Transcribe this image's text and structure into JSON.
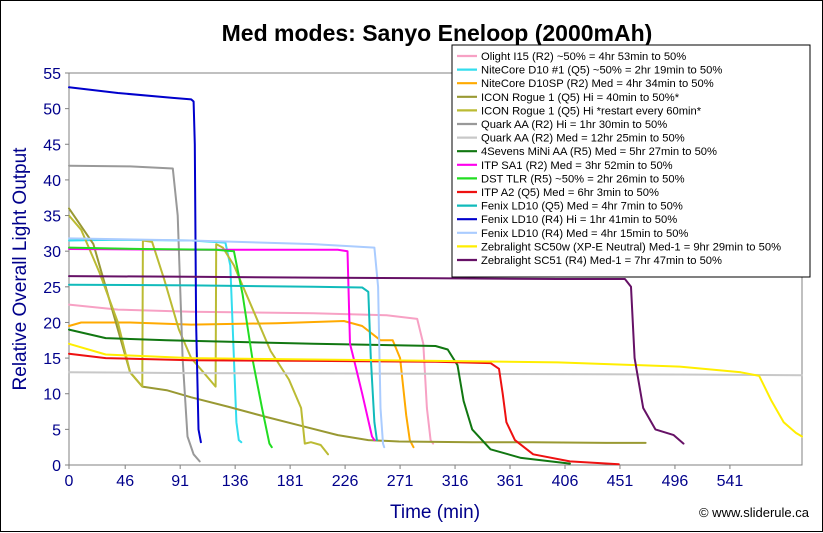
{
  "chart_data": {
    "type": "line",
    "title": "Med modes: Sanyo Eneloop (2000mAh)",
    "xlabel": "Time (min)",
    "ylabel": "Relative Overall Light Output",
    "xlim": [
      0,
      600
    ],
    "ylim": [
      0,
      55
    ],
    "xticks": [
      0,
      46,
      91,
      136,
      181,
      226,
      271,
      316,
      361,
      406,
      451,
      496,
      541
    ],
    "yticks": [
      0,
      5,
      10,
      15,
      20,
      25,
      30,
      35,
      40,
      45,
      50,
      55
    ],
    "grid": false,
    "legend_position": "top-right",
    "credit": "© www.sliderule.ca",
    "series": [
      {
        "name": "Olight I15 (R2) ~50% = 4hr 53min to 50%",
        "color": "#f7a1c4",
        "points": [
          [
            0,
            22.5
          ],
          [
            40,
            21.8
          ],
          [
            100,
            21.5
          ],
          [
            200,
            21.3
          ],
          [
            260,
            21.0
          ],
          [
            285,
            20.5
          ],
          [
            290,
            17
          ],
          [
            293,
            8
          ],
          [
            296,
            3.5
          ],
          [
            298,
            3
          ]
        ]
      },
      {
        "name": "NiteCore D10 #1 (Q5) ~50% = 2hr 19min to 50%",
        "color": "#33ddee",
        "points": [
          [
            0,
            31.5
          ],
          [
            40,
            31.6
          ],
          [
            100,
            31.5
          ],
          [
            128,
            31.2
          ],
          [
            132,
            28
          ],
          [
            135,
            15
          ],
          [
            137,
            6
          ],
          [
            139,
            3.5
          ],
          [
            141,
            3.2
          ]
        ]
      },
      {
        "name": "NiteCore D10SP (R2) Med = 4hr 34min to 50%",
        "color": "#ffaa00",
        "points": [
          [
            0,
            19.5
          ],
          [
            10,
            20
          ],
          [
            50,
            20
          ],
          [
            100,
            19.7
          ],
          [
            170,
            19.9
          ],
          [
            225,
            20.2
          ],
          [
            240,
            19.5
          ],
          [
            255,
            17.5
          ],
          [
            265,
            17.5
          ],
          [
            271,
            15
          ],
          [
            276,
            7
          ],
          [
            279,
            3.5
          ],
          [
            282,
            2.5
          ]
        ]
      },
      {
        "name": "ICON Rogue 1 (Q5) Hi = 40min to 50%*",
        "color": "#999933",
        "points": [
          [
            0,
            36
          ],
          [
            8,
            34
          ],
          [
            20,
            31
          ],
          [
            35,
            22
          ],
          [
            50,
            13
          ],
          [
            60,
            11
          ],
          [
            80,
            10.5
          ],
          [
            100,
            9.5
          ],
          [
            130,
            8.2
          ],
          [
            160,
            6.8
          ],
          [
            190,
            5.5
          ],
          [
            220,
            4.2
          ],
          [
            245,
            3.5
          ],
          [
            270,
            3.3
          ],
          [
            330,
            3.2
          ],
          [
            380,
            3.2
          ],
          [
            440,
            3.1
          ],
          [
            472,
            3.1
          ]
        ]
      },
      {
        "name": "ICON Rogue 1 (Q5) Hi *restart every 60min*",
        "color": "#bbbb33",
        "points": [
          [
            0,
            35
          ],
          [
            10,
            33
          ],
          [
            25,
            27
          ],
          [
            40,
            20
          ],
          [
            50,
            13
          ],
          [
            60,
            11
          ],
          [
            60.5,
            31.5
          ],
          [
            68,
            31.3
          ],
          [
            78,
            26
          ],
          [
            90,
            19
          ],
          [
            100,
            15
          ],
          [
            110,
            13
          ],
          [
            120,
            11
          ],
          [
            120.5,
            31
          ],
          [
            126,
            30.5
          ],
          [
            135,
            28
          ],
          [
            150,
            22
          ],
          [
            165,
            16
          ],
          [
            180,
            12
          ],
          [
            190,
            8
          ],
          [
            193,
            3
          ],
          [
            198,
            3.2
          ],
          [
            206,
            2.8
          ],
          [
            212,
            1.5
          ]
        ]
      },
      {
        "name": "Quark AA (R2) Hi = 1hr 30min to 50%",
        "color": "#999999",
        "points": [
          [
            0,
            42
          ],
          [
            50,
            41.9
          ],
          [
            85,
            41.6
          ],
          [
            89,
            35
          ],
          [
            93,
            15
          ],
          [
            97,
            4
          ],
          [
            102,
            1.5
          ],
          [
            107,
            0.5
          ]
        ]
      },
      {
        "name": "Quark AA (R2) Med = 12hr 25min to 50%",
        "color": "#c8c8c8",
        "points": [
          [
            0,
            13
          ],
          [
            100,
            12.9
          ],
          [
            300,
            12.8
          ],
          [
            500,
            12.7
          ],
          [
            600,
            12.6
          ]
        ]
      },
      {
        "name": "4Sevens MiNi AA (R5) Med = 5hr 27min to 50%",
        "color": "#117711",
        "points": [
          [
            0,
            19
          ],
          [
            30,
            17.8
          ],
          [
            80,
            17.5
          ],
          [
            200,
            17
          ],
          [
            300,
            16.7
          ],
          [
            310,
            16.2
          ],
          [
            318,
            14
          ],
          [
            323,
            9
          ],
          [
            330,
            5
          ],
          [
            345,
            2.2
          ],
          [
            370,
            1
          ],
          [
            410,
            0.2
          ]
        ]
      },
      {
        "name": "ITP SA1 (R2) Med = 3hr 52min to 50%",
        "color": "#ff00ee",
        "points": [
          [
            0,
            30.3
          ],
          [
            100,
            30.2
          ],
          [
            200,
            30.2
          ],
          [
            220,
            30.2
          ],
          [
            228,
            30
          ],
          [
            230,
            17
          ],
          [
            233,
            15
          ],
          [
            240,
            10
          ],
          [
            248,
            4
          ],
          [
            250,
            3.5
          ]
        ]
      },
      {
        "name": "DST TLR (R5) ~50% = 2hr 26min to 50%",
        "color": "#22dd22",
        "points": [
          [
            0,
            30.5
          ],
          [
            60,
            30.3
          ],
          [
            120,
            30.2
          ],
          [
            135,
            30
          ],
          [
            142,
            24
          ],
          [
            150,
            15
          ],
          [
            158,
            8
          ],
          [
            164,
            3
          ],
          [
            166,
            2.5
          ]
        ]
      },
      {
        "name": "ITP A2 (Q5) Med = 6hr 3min to 50%",
        "color": "#ee1111",
        "points": [
          [
            0,
            15.6
          ],
          [
            30,
            15
          ],
          [
            100,
            14.7
          ],
          [
            200,
            14.6
          ],
          [
            300,
            14.5
          ],
          [
            345,
            14.3
          ],
          [
            352,
            13.5
          ],
          [
            355,
            10
          ],
          [
            358,
            6
          ],
          [
            365,
            3.5
          ],
          [
            380,
            1.5
          ],
          [
            410,
            0.5
          ],
          [
            450,
            0.1
          ]
        ]
      },
      {
        "name": "Fenix LD10 (Q5) Med = 4hr 7min to 50%",
        "color": "#11bbbb",
        "points": [
          [
            0,
            25.3
          ],
          [
            100,
            25.2
          ],
          [
            200,
            25
          ],
          [
            240,
            24.9
          ],
          [
            245,
            24.3
          ],
          [
            247,
            15
          ],
          [
            250,
            6
          ],
          [
            252,
            3.5
          ]
        ]
      },
      {
        "name": "Fenix LD10 (R4) Hi = 1hr 41min to 50%",
        "color": "#0000cc",
        "points": [
          [
            0,
            53
          ],
          [
            40,
            52.2
          ],
          [
            85,
            51.5
          ],
          [
            100,
            51.3
          ],
          [
            102,
            51
          ],
          [
            103,
            45
          ],
          [
            104,
            20
          ],
          [
            106,
            5
          ],
          [
            108,
            3.2
          ]
        ]
      },
      {
        "name": "Fenix LD10 (R4) Med = 4hr 15min to 50%",
        "color": "#aaccff",
        "points": [
          [
            0,
            31.8
          ],
          [
            100,
            31.5
          ],
          [
            200,
            31
          ],
          [
            250,
            30.5
          ],
          [
            253,
            25
          ],
          [
            255,
            8
          ],
          [
            257,
            3
          ],
          [
            258,
            2.5
          ]
        ]
      },
      {
        "name": "Zebralight SC50w (XP-E Neutral) Med-1 = 9hr 29min to 50%",
        "color": "#ffee00",
        "points": [
          [
            0,
            17
          ],
          [
            30,
            15.5
          ],
          [
            100,
            15
          ],
          [
            200,
            14.8
          ],
          [
            300,
            14.6
          ],
          [
            400,
            14.4
          ],
          [
            500,
            13.8
          ],
          [
            550,
            13
          ],
          [
            565,
            12.5
          ],
          [
            575,
            9
          ],
          [
            585,
            6
          ],
          [
            595,
            4.5
          ],
          [
            600,
            4
          ]
        ]
      },
      {
        "name": "Zebralight SC51 (R4) Med-1 = 7hr 47min to 50%",
        "color": "#661166",
        "points": [
          [
            0,
            26.5
          ],
          [
            100,
            26.4
          ],
          [
            200,
            26.3
          ],
          [
            300,
            26.2
          ],
          [
            400,
            26.1
          ],
          [
            455,
            26.1
          ],
          [
            460,
            25
          ],
          [
            463,
            15
          ],
          [
            470,
            8
          ],
          [
            480,
            5
          ],
          [
            495,
            4.2
          ],
          [
            503,
            3
          ]
        ]
      }
    ]
  }
}
